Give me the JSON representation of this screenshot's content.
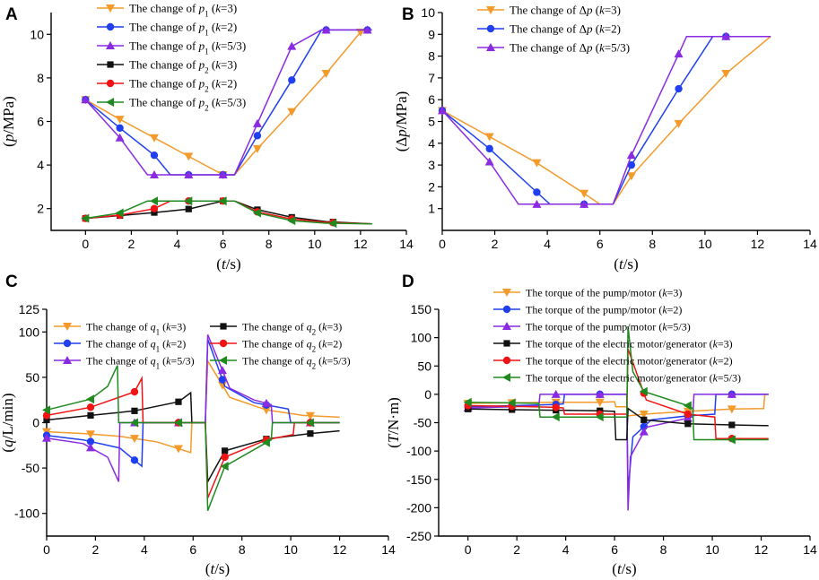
{
  "colors": {
    "orange": "#f39a2b",
    "blue": "#1f3ff0",
    "purple": "#8a2be2",
    "black": "#111111",
    "red": "#f01414",
    "green": "#1f8a1f"
  },
  "chart_data": [
    {
      "panel": "A",
      "type": "line",
      "xlabel": "(t/s)",
      "ylabel": "(p/MPa)",
      "xlim": [
        -1.5,
        14
      ],
      "ylim": [
        1,
        11
      ],
      "xticks": [
        "0",
        "2",
        "4",
        "6",
        "8",
        "10",
        "12",
        "14"
      ],
      "yticks": [
        "2",
        "4",
        "6",
        "8",
        "10"
      ],
      "series": [
        {
          "name": "The change of p1 (k=3)",
          "color": "#f39a2b",
          "marker": "tri-down",
          "x": [
            0,
            1.5,
            3,
            4.5,
            6,
            6.5,
            7.5,
            9,
            10.5,
            12
          ],
          "y": [
            7,
            6.1,
            5.25,
            4.4,
            3.55,
            3.55,
            4.75,
            6.45,
            8.2,
            10.1
          ]
        },
        {
          "name": "The change of p1 (k=2)",
          "color": "#1f3ff0",
          "marker": "circle",
          "x": [
            0,
            1.5,
            3,
            3.7,
            6,
            6.5,
            7.5,
            9,
            10.3,
            10.5,
            12.3
          ],
          "y": [
            7,
            5.7,
            4.45,
            3.55,
            3.55,
            3.55,
            5.35,
            7.9,
            10.2,
            10.2,
            10.2
          ]
        },
        {
          "name": "The change of p1 (k=5/3)",
          "color": "#8a2be2",
          "marker": "tri-up",
          "x": [
            0,
            1.5,
            2.7,
            6,
            6.5,
            7.5,
            9,
            10.3,
            12.5
          ],
          "y": [
            7,
            5.25,
            3.55,
            3.55,
            3.55,
            5.9,
            9.45,
            10.2,
            10.2
          ]
        },
        {
          "name": "The change of p2 (k=3)",
          "color": "#111111",
          "marker": "square",
          "x": [
            0,
            1.5,
            3,
            4.5,
            6,
            6.5,
            7.5,
            9,
            10.5,
            12.5
          ],
          "y": [
            1.55,
            1.68,
            1.82,
            1.98,
            2.35,
            2.35,
            1.95,
            1.6,
            1.4,
            1.3
          ]
        },
        {
          "name": "The change of p2 (k=2)",
          "color": "#f01414",
          "marker": "circle",
          "x": [
            0,
            1.5,
            3,
            3.7,
            6,
            6.5,
            7.5,
            9,
            10.5,
            12.5
          ],
          "y": [
            1.55,
            1.7,
            2.0,
            2.35,
            2.35,
            2.35,
            1.85,
            1.52,
            1.37,
            1.3
          ]
        },
        {
          "name": "The change of p2 (k=5/3)",
          "color": "#1f8a1f",
          "marker": "tri-left",
          "x": [
            0,
            1.5,
            2.7,
            6,
            6.5,
            7.5,
            9,
            10.5,
            12.5
          ],
          "y": [
            1.55,
            1.8,
            2.35,
            2.35,
            2.35,
            1.8,
            1.45,
            1.33,
            1.3
          ]
        }
      ],
      "marker_x": [
        [
          0,
          1.5,
          3,
          4.5,
          6,
          7.5,
          9,
          10.5,
          12
        ],
        [
          0,
          1.5,
          3,
          4.5,
          6,
          7.5,
          9,
          10.5,
          12.3
        ],
        [
          0,
          1.5,
          3,
          4.5,
          6,
          7.5,
          9,
          10.5,
          12.3
        ],
        [
          0,
          1.5,
          3,
          4.5,
          6,
          7.5,
          9,
          10.8
        ],
        [
          0,
          1.5,
          3,
          4.5,
          6,
          7.5,
          9,
          10.8
        ],
        [
          0,
          1.5,
          3,
          4.5,
          6,
          7.5,
          9,
          10.8
        ]
      ]
    },
    {
      "panel": "B",
      "type": "line",
      "xlabel": "(t/s)",
      "ylabel": "(Δp/MPa)",
      "xlim": [
        0,
        14
      ],
      "ylim": [
        0,
        10
      ],
      "xticks": [
        "0",
        "2",
        "4",
        "6",
        "8",
        "10",
        "12",
        "14"
      ],
      "yticks": [
        "1",
        "2",
        "3",
        "4",
        "5",
        "6",
        "7",
        "8",
        "9",
        "10"
      ],
      "series": [
        {
          "name": "The change of Δp (k=3)",
          "color": "#f39a2b",
          "marker": "tri-down",
          "x": [
            0,
            1.8,
            3.6,
            5.4,
            6,
            6.5,
            7.2,
            9,
            10.8,
            12.5
          ],
          "y": [
            5.5,
            4.3,
            3.1,
            1.7,
            1.2,
            1.2,
            2.5,
            4.9,
            7.2,
            8.9
          ]
        },
        {
          "name": "The change of Δp (k=2)",
          "color": "#1f3ff0",
          "marker": "circle",
          "x": [
            0,
            1.8,
            3.6,
            4.1,
            6.5,
            7.2,
            9,
            10.3,
            12.5
          ],
          "y": [
            5.5,
            3.75,
            1.75,
            1.2,
            1.2,
            3.0,
            6.5,
            8.9,
            8.9
          ]
        },
        {
          "name": "The change of Δp (k=5/3)",
          "color": "#8a2be2",
          "marker": "tri-up",
          "x": [
            0,
            1.8,
            2.9,
            6.5,
            7.2,
            9,
            9.3,
            12.5
          ],
          "y": [
            5.5,
            3.15,
            1.2,
            1.2,
            3.45,
            8.1,
            8.9,
            8.9
          ]
        }
      ],
      "marker_x": [
        [
          0,
          1.8,
          3.6,
          5.4,
          7.2,
          9,
          10.8
        ],
        [
          0,
          1.8,
          3.6,
          5.4,
          7.2,
          9,
          10.8
        ],
        [
          0,
          1.8,
          3.6,
          5.4,
          7.2,
          9,
          10.8
        ]
      ]
    },
    {
      "panel": "C",
      "type": "line",
      "xlabel": "(t/s)",
      "ylabel": "(q/L/min)",
      "xlim": [
        0,
        14
      ],
      "ylim": [
        -125,
        125
      ],
      "xticks": [
        "0",
        "2",
        "4",
        "6",
        "8",
        "10",
        "12",
        "14"
      ],
      "yticks": [
        "-100",
        "-50",
        "0",
        "50",
        "100",
        "125"
      ],
      "series": [
        {
          "name": "The change of q1 (k=3)",
          "color": "#f39a2b",
          "marker": "tri-down",
          "x": [
            0,
            1.5,
            3,
            4.5,
            5.9,
            5.95,
            6,
            6.5,
            6.6,
            7.5,
            9,
            10.5,
            12
          ],
          "y": [
            -10,
            -12,
            -15,
            -21,
            -33,
            0,
            0,
            0,
            68,
            28,
            14,
            8,
            6
          ]
        },
        {
          "name": "The change of q1 (k=2)",
          "color": "#1f3ff0",
          "marker": "circle",
          "x": [
            0,
            1.5,
            3,
            3.9,
            3.95,
            6.5,
            6.6,
            7.3,
            8.5,
            9.9,
            10.0,
            12
          ],
          "y": [
            -14,
            -19,
            -28,
            -48,
            0,
            0,
            92,
            40,
            22,
            15,
            0,
            0
          ]
        },
        {
          "name": "The change of q1 (k=5/3)",
          "color": "#8a2be2",
          "marker": "tri-up",
          "x": [
            0,
            1.5,
            2.5,
            2.95,
            3.0,
            6.5,
            6.6,
            7.5,
            8.5,
            9.2,
            9.25,
            12
          ],
          "y": [
            -17,
            -23,
            -38,
            -65,
            0,
            0,
            97,
            38,
            25,
            20,
            0,
            0
          ]
        },
        {
          "name": "The change of q2 (k=3)",
          "color": "#111111",
          "marker": "square",
          "x": [
            0,
            1.8,
            3.6,
            5.4,
            5.9,
            5.95,
            6.5,
            6.6,
            7.3,
            9,
            10.8,
            12
          ],
          "y": [
            3,
            8,
            13,
            23,
            33,
            0,
            0,
            -65,
            -31,
            -18,
            -12,
            -9
          ]
        },
        {
          "name": "The change of q2 (k=2)",
          "color": "#f01414",
          "marker": "circle",
          "x": [
            0,
            1.8,
            3.6,
            3.9,
            3.95,
            6.5,
            6.6,
            7.3,
            9,
            10.1,
            10.15,
            12
          ],
          "y": [
            8,
            17,
            34,
            49,
            0,
            0,
            -83,
            -38,
            -19,
            -13,
            0,
            0
          ]
        },
        {
          "name": "The change of q2 (k=5/3)",
          "color": "#1f8a1f",
          "marker": "tri-left",
          "x": [
            0,
            1.8,
            2.5,
            2.9,
            2.95,
            6.5,
            6.6,
            7.3,
            9,
            9.2,
            9.25,
            12
          ],
          "y": [
            14,
            26,
            40,
            63,
            0,
            0,
            -97,
            -48,
            -22,
            -19,
            0,
            0
          ]
        }
      ],
      "marker_x": [
        [
          0,
          1.8,
          3.6,
          5.4,
          7.2,
          9,
          10.8
        ],
        [
          0,
          1.8,
          3.6,
          5.4,
          7.2,
          9,
          10.8
        ],
        [
          0,
          1.8,
          3.6,
          5.4,
          7.2,
          9,
          10.8
        ],
        [
          0,
          1.8,
          3.6,
          5.4,
          7.3,
          9,
          10.8
        ],
        [
          0,
          1.8,
          3.6,
          5.4,
          7.3,
          9,
          10.8
        ],
        [
          0,
          1.8,
          3.6,
          5.4,
          7.3,
          9,
          10.8
        ]
      ]
    },
    {
      "panel": "D",
      "type": "line",
      "xlabel": "(t/s)",
      "ylabel": "(T/N·m)",
      "xlim": [
        -1.2,
        14
      ],
      "ylim": [
        -250,
        150
      ],
      "xticks": [
        "0",
        "2",
        "4",
        "6",
        "8",
        "10",
        "12",
        "14"
      ],
      "yticks": [
        "-250",
        "-200",
        "-150",
        "-100",
        "-50",
        "0",
        "50",
        "100",
        "150"
      ],
      "series": [
        {
          "name": "The torque of the pump/motor (k=3)",
          "color": "#f39a2b",
          "marker": "tri-down",
          "x": [
            0,
            1.8,
            3.6,
            5.4,
            6.0,
            6.05,
            6.5,
            6.55,
            7.2,
            9,
            10.8,
            12.1,
            12.15,
            12.3
          ],
          "y": [
            -16,
            -15,
            -14,
            -14,
            -13,
            -22,
            -22,
            -38,
            -35,
            -30,
            -26,
            -25,
            0,
            0
          ]
        },
        {
          "name": "The torque of the pump/motor (k=2)",
          "color": "#1f3ff0",
          "marker": "circle",
          "x": [
            0,
            1.8,
            3.6,
            3.9,
            3.95,
            6.5,
            6.55,
            6.75,
            7.5,
            9,
            10.1,
            10.15,
            12.3
          ],
          "y": [
            -22,
            -20,
            -18,
            -17,
            0,
            0,
            -170,
            -75,
            -45,
            -38,
            -35,
            0,
            0
          ]
        },
        {
          "name": "The torque of the pump/motor (k=5/3)",
          "color": "#8a2be2",
          "marker": "tri-up",
          "x": [
            0,
            1.8,
            2.9,
            2.95,
            6.5,
            6.55,
            6.65,
            7.3,
            9,
            9.2,
            9.25,
            12.3
          ],
          "y": [
            -24,
            -22,
            -20,
            0,
            0,
            -205,
            -110,
            -58,
            -42,
            -40,
            0,
            0
          ]
        },
        {
          "name": "The torque of the electric motor/generator (k=3)",
          "color": "#111111",
          "marker": "square",
          "x": [
            0,
            1.8,
            3.6,
            5.4,
            6.0,
            6.05,
            6.5,
            6.55,
            7.2,
            9,
            10.8,
            12.1,
            12.15,
            12.3
          ],
          "y": [
            -26,
            -27,
            -28,
            -29,
            -30,
            -80,
            -80,
            -25,
            -45,
            -52,
            -54,
            -55,
            -55,
            -55
          ]
        },
        {
          "name": "The torque of the electric motor/generator (k=2)",
          "color": "#f01414",
          "marker": "circle",
          "x": [
            0,
            1.8,
            3.6,
            3.9,
            3.95,
            6.5,
            6.55,
            7.3,
            9,
            10.1,
            10.15,
            12.3
          ],
          "y": [
            -20,
            -21,
            -23,
            -24,
            -35,
            -35,
            80,
            -10,
            -35,
            -40,
            -78,
            -78
          ]
        },
        {
          "name": "The torque of the electric motor/generator (k=5/3)",
          "color": "#1f8a1f",
          "marker": "tri-left",
          "x": [
            0,
            1.8,
            2.9,
            2.95,
            6.5,
            6.55,
            6.75,
            7.2,
            9,
            9.2,
            9.25,
            12.3
          ],
          "y": [
            -14,
            -15,
            -16,
            -40,
            -40,
            120,
            40,
            5,
            -20,
            -25,
            -80,
            -80
          ]
        }
      ],
      "marker_x": [
        [
          0,
          1.8,
          3.6,
          5.4,
          7.2,
          9,
          10.8
        ],
        [
          0,
          1.8,
          3.6,
          5.4,
          7.2,
          9,
          10.8
        ],
        [
          0,
          1.8,
          3.6,
          5.4,
          7.2,
          9,
          10.8
        ],
        [
          0,
          1.8,
          3.6,
          5.4,
          7.2,
          9,
          10.8
        ],
        [
          0,
          1.8,
          3.6,
          5.4,
          7.2,
          9,
          10.8
        ],
        [
          0,
          1.8,
          3.6,
          5.4,
          7.2,
          9,
          10.8
        ]
      ]
    }
  ],
  "legends": {
    "A": [
      {
        "base": "The change of ",
        "var": "p",
        "sub": "1",
        "k": "3"
      },
      {
        "base": "The change of ",
        "var": "p",
        "sub": "1",
        "k": "2"
      },
      {
        "base": "The change of ",
        "var": "p",
        "sub": "1",
        "k": "5/3"
      },
      {
        "base": "The change of ",
        "var": "p",
        "sub": "2",
        "k": "3"
      },
      {
        "base": "The change of ",
        "var": "p",
        "sub": "2",
        "k": "2"
      },
      {
        "base": "The change of ",
        "var": "p",
        "sub": "2",
        "k": "5/3"
      }
    ],
    "B": [
      {
        "base": "The change of Δ",
        "var": "p",
        "sub": "",
        "k": "3"
      },
      {
        "base": "The change of Δ",
        "var": "p",
        "sub": "",
        "k": "2"
      },
      {
        "base": "The change of Δ",
        "var": "p",
        "sub": "",
        "k": "5/3"
      }
    ],
    "C": [
      {
        "base": "The change of ",
        "var": "q",
        "sub": "1",
        "k": "3"
      },
      {
        "base": "The change of ",
        "var": "q",
        "sub": "1",
        "k": "2"
      },
      {
        "base": "The change of ",
        "var": "q",
        "sub": "1",
        "k": "5/3"
      },
      {
        "base": "The change of ",
        "var": "q",
        "sub": "2",
        "k": "3"
      },
      {
        "base": "The change of ",
        "var": "q",
        "sub": "2",
        "k": "2"
      },
      {
        "base": "The change of ",
        "var": "q",
        "sub": "2",
        "k": "5/3"
      }
    ],
    "D": [
      {
        "base": "The torque of the pump/motor ",
        "var": "",
        "sub": "",
        "k": "3"
      },
      {
        "base": "The torque of the pump/motor ",
        "var": "",
        "sub": "",
        "k": "2"
      },
      {
        "base": "The torque of the pump/motor ",
        "var": "",
        "sub": "",
        "k": "5/3"
      },
      {
        "base": "The torque of the electric motor/generator ",
        "var": "",
        "sub": "",
        "k": "3"
      },
      {
        "base": "The torque of the electric motor/generator ",
        "var": "",
        "sub": "",
        "k": "2"
      },
      {
        "base": "The torque of the electric motor/generator ",
        "var": "",
        "sub": "",
        "k": "5/3"
      }
    ]
  },
  "axis_labels": {
    "A": {
      "y_var": "p",
      "y_unit": "/MPa",
      "x_var": "t",
      "x_unit": "/s"
    },
    "B": {
      "y_var": "p",
      "y_unit": "/MPa",
      "y_prefix": "Δ",
      "x_var": "t",
      "x_unit": "/s"
    },
    "C": {
      "y_var": "q",
      "y_unit": "/L/min",
      "x_var": "t",
      "x_unit": "/s"
    },
    "D": {
      "y_var": "T",
      "y_unit": "/N·m",
      "x_var": "t",
      "x_unit": "/s"
    }
  }
}
